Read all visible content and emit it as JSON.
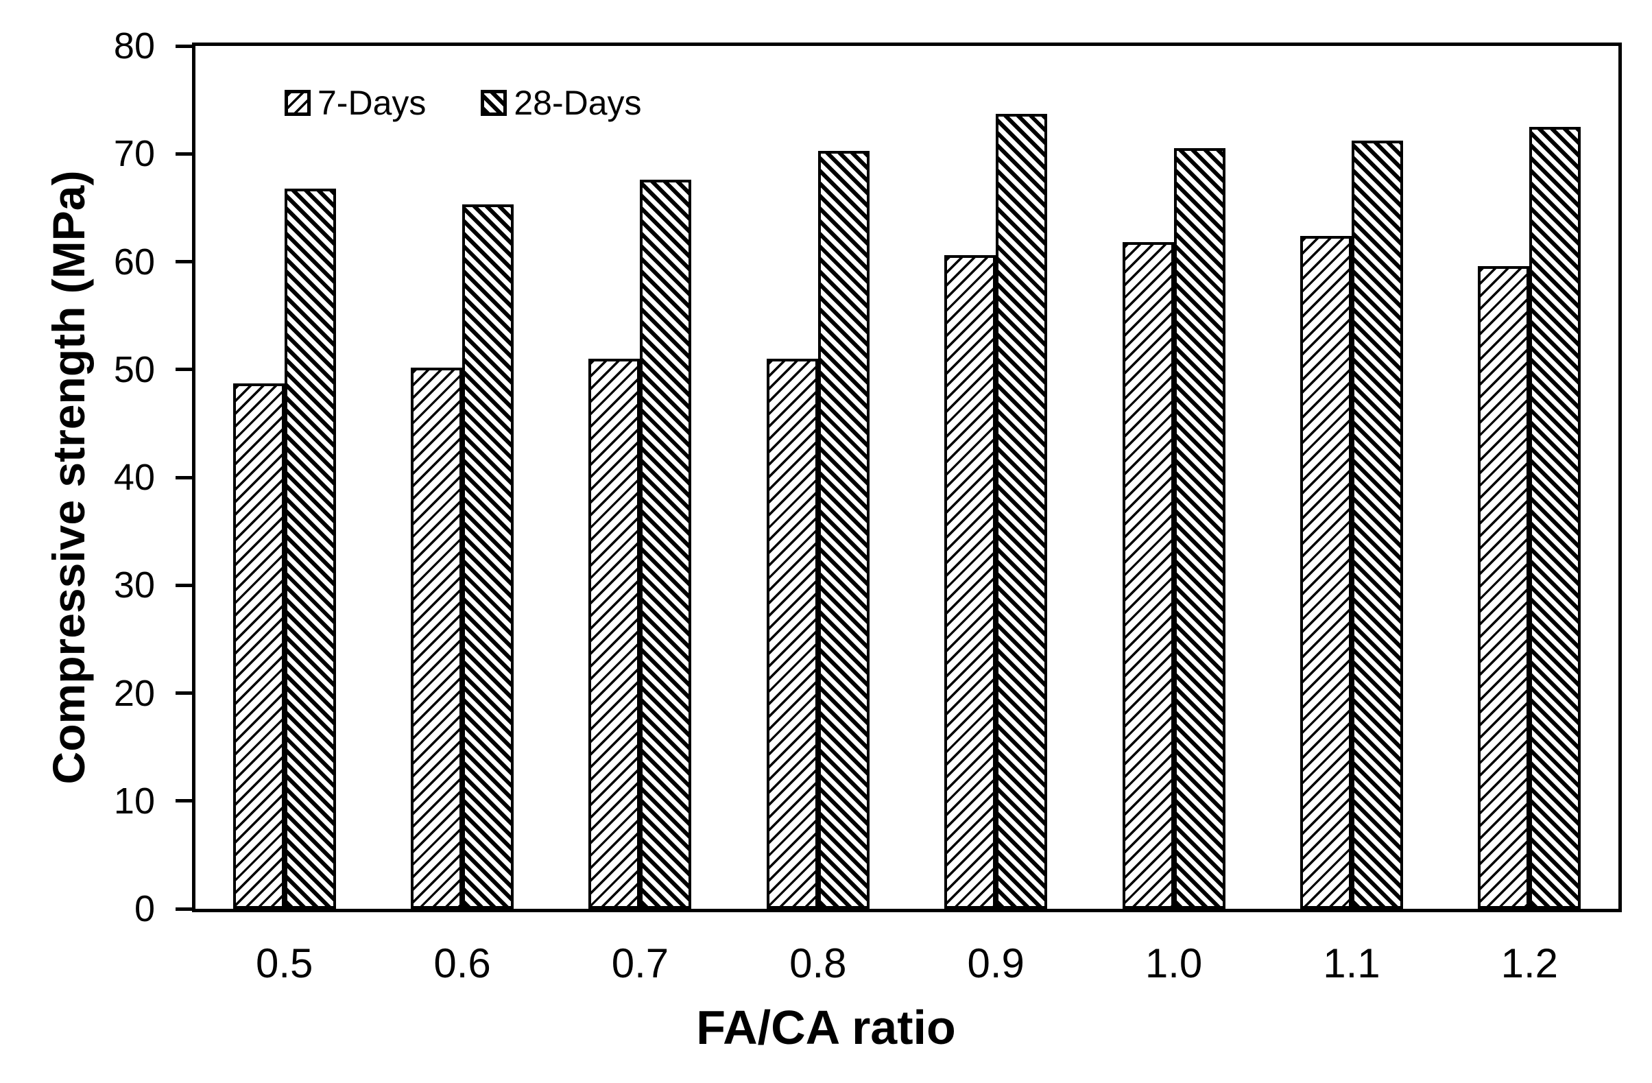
{
  "chart_data": {
    "type": "bar",
    "title": "",
    "xlabel": "FA/CA ratio",
    "ylabel": "Compressive strength (MPa)",
    "categories": [
      "0.5",
      "0.6",
      "0.7",
      "0.8",
      "0.9",
      "1.0",
      "1.1",
      "1.2"
    ],
    "series": [
      {
        "name": "7-Days",
        "pattern": "thin-forward-diagonal-hatch",
        "values": [
          48.7,
          50.2,
          51.0,
          51.0,
          60.6,
          61.8,
          62.4,
          59.6
        ]
      },
      {
        "name": "28-Days",
        "pattern": "thick-backward-diagonal-hatch",
        "values": [
          66.8,
          65.3,
          67.6,
          70.3,
          73.7,
          70.5,
          71.2,
          72.5
        ]
      }
    ],
    "ylim": [
      0,
      80
    ],
    "yticks": [
      0,
      10,
      20,
      30,
      40,
      50,
      60,
      70,
      80
    ],
    "grid": false,
    "legend_position": "top-left-inside",
    "bar_outline_color": "#000000",
    "background_color": "#ffffff"
  }
}
